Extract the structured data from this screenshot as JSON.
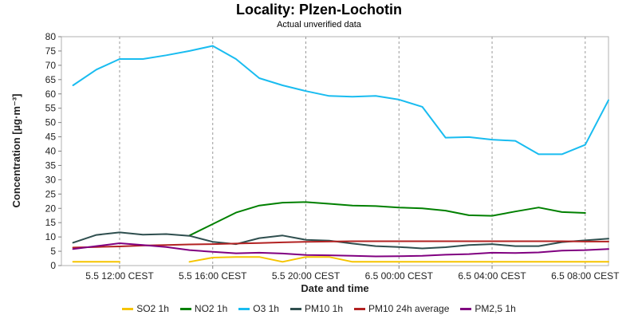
{
  "chart_data": {
    "type": "line",
    "title": "Locality: Plzen-Lochotin",
    "subtitle": "Actual unverified data",
    "xlabel": "Date and time",
    "ylabel": "Concentration [µg·m⁻³]",
    "ylim": [
      0,
      80
    ],
    "yticks": [
      0,
      5,
      10,
      15,
      20,
      25,
      30,
      35,
      40,
      45,
      50,
      55,
      60,
      65,
      70,
      75,
      80
    ],
    "xlim": [
      9.5,
      33.0
    ],
    "xticks": [
      {
        "hour": 12,
        "label": "5.5 12:00 CEST"
      },
      {
        "hour": 16,
        "label": "5.5 16:00 CEST"
      },
      {
        "hour": 20,
        "label": "5.5 20:00 CEST"
      },
      {
        "hour": 24,
        "label": "6.5 00:00 CEST"
      },
      {
        "hour": 28,
        "label": "6.5 04:00 CEST"
      },
      {
        "hour": 32,
        "label": "6.5 08:00 CEST"
      }
    ],
    "grid": true,
    "legend_position": "bottom",
    "series": [
      {
        "name": "SO2 1h",
        "color": "#f5c400",
        "segments": [
          [
            [
              10,
              1.3
            ],
            [
              11,
              1.3
            ],
            [
              12,
              1.3
            ]
          ],
          [
            [
              15,
              1.3
            ],
            [
              16,
              2.8
            ],
            [
              17,
              3.0
            ],
            [
              18,
              3.0
            ],
            [
              19,
              1.3
            ],
            [
              20,
              3.0
            ],
            [
              21,
              3.0
            ],
            [
              22,
              1.3
            ],
            [
              23,
              1.3
            ],
            [
              24,
              1.3
            ],
            [
              25,
              1.3
            ],
            [
              26,
              1.3
            ],
            [
              27,
              1.3
            ],
            [
              28,
              1.3
            ],
            [
              29,
              1.3
            ],
            [
              30,
              1.3
            ],
            [
              31,
              1.3
            ],
            [
              32,
              1.3
            ],
            [
              33,
              1.3
            ]
          ]
        ]
      },
      {
        "name": "NO2 1h",
        "color": "#008000",
        "segments": [
          [
            [
              15,
              10.5
            ],
            [
              16,
              14.5
            ],
            [
              17,
              18.5
            ],
            [
              18,
              21.0
            ],
            [
              19,
              22.0
            ],
            [
              20,
              22.2
            ],
            [
              21,
              21.6
            ],
            [
              22,
              21.0
            ],
            [
              23,
              20.8
            ],
            [
              24,
              20.3
            ],
            [
              25,
              20.0
            ],
            [
              26,
              19.2
            ],
            [
              27,
              17.6
            ],
            [
              28,
              17.4
            ],
            [
              29,
              18.9
            ],
            [
              30,
              20.3
            ],
            [
              31,
              18.7
            ],
            [
              32,
              18.4
            ]
          ]
        ]
      },
      {
        "name": "O3 1h",
        "color": "#19bcf0",
        "segments": [
          [
            [
              10,
              63.0
            ],
            [
              11,
              68.5
            ],
            [
              12,
              72.2
            ],
            [
              13,
              72.2
            ],
            [
              14,
              73.5
            ],
            [
              15,
              75.0
            ],
            [
              16,
              76.8
            ],
            [
              17,
              72.2
            ],
            [
              18,
              65.5
            ],
            [
              19,
              63.0
            ],
            [
              20,
              61.0
            ],
            [
              21,
              59.3
            ],
            [
              22,
              59.0
            ],
            [
              23,
              59.3
            ],
            [
              24,
              58.0
            ],
            [
              25,
              55.5
            ],
            [
              26,
              44.7
            ],
            [
              27,
              44.9
            ],
            [
              28,
              44.0
            ],
            [
              29,
              43.6
            ],
            [
              30,
              38.9
            ],
            [
              31,
              38.9
            ],
            [
              32,
              42.2
            ],
            [
              33,
              57.8
            ]
          ]
        ]
      },
      {
        "name": "PM10 1h",
        "color": "#2f4f4f",
        "segments": [
          [
            [
              10,
              8.0
            ],
            [
              11,
              10.7
            ],
            [
              12,
              11.6
            ],
            [
              13,
              10.8
            ],
            [
              14,
              11.0
            ],
            [
              15,
              10.4
            ],
            [
              16,
              8.3
            ],
            [
              17,
              7.5
            ],
            [
              18,
              9.6
            ],
            [
              19,
              10.5
            ],
            [
              20,
              9.0
            ],
            [
              21,
              8.7
            ],
            [
              22,
              7.7
            ],
            [
              23,
              6.8
            ],
            [
              24,
              6.5
            ],
            [
              25,
              6.0
            ],
            [
              26,
              6.4
            ],
            [
              27,
              7.2
            ],
            [
              28,
              7.5
            ],
            [
              29,
              6.8
            ],
            [
              30,
              6.8
            ],
            [
              31,
              8.2
            ],
            [
              32,
              8.8
            ],
            [
              33,
              9.4
            ]
          ]
        ]
      },
      {
        "name": "PM10 24h average",
        "color": "#b22222",
        "segments": [
          [
            [
              10,
              6.3
            ],
            [
              11,
              6.5
            ],
            [
              12,
              6.7
            ],
            [
              13,
              7.0
            ],
            [
              14,
              7.2
            ],
            [
              15,
              7.4
            ],
            [
              16,
              7.5
            ],
            [
              17,
              7.7
            ],
            [
              18,
              7.9
            ],
            [
              19,
              8.1
            ],
            [
              20,
              8.3
            ],
            [
              21,
              8.4
            ],
            [
              22,
              8.5
            ],
            [
              23,
              8.5
            ],
            [
              24,
              8.5
            ],
            [
              25,
              8.5
            ],
            [
              26,
              8.5
            ],
            [
              27,
              8.5
            ],
            [
              28,
              8.5
            ],
            [
              29,
              8.5
            ],
            [
              30,
              8.5
            ],
            [
              31,
              8.5
            ],
            [
              32,
              8.4
            ],
            [
              33,
              8.4
            ]
          ]
        ]
      },
      {
        "name": "PM2,5 1h",
        "color": "#800080",
        "segments": [
          [
            [
              10,
              5.8
            ],
            [
              11,
              6.8
            ],
            [
              12,
              7.8
            ],
            [
              13,
              7.2
            ],
            [
              14,
              6.5
            ],
            [
              15,
              5.4
            ],
            [
              16,
              4.8
            ],
            [
              17,
              4.3
            ],
            [
              18,
              4.5
            ],
            [
              19,
              4.2
            ],
            [
              20,
              3.7
            ],
            [
              21,
              3.6
            ],
            [
              22,
              3.4
            ],
            [
              23,
              3.2
            ],
            [
              24,
              3.3
            ],
            [
              25,
              3.4
            ],
            [
              26,
              3.8
            ],
            [
              27,
              4.0
            ],
            [
              28,
              4.5
            ],
            [
              29,
              4.4
            ],
            [
              30,
              4.6
            ],
            [
              31,
              5.2
            ],
            [
              32,
              5.4
            ],
            [
              33,
              5.8
            ]
          ]
        ]
      }
    ]
  }
}
